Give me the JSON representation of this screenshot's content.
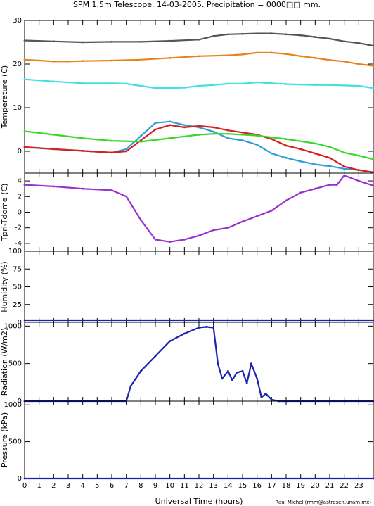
{
  "header": {
    "title": "SPM 1.5m Telescope. 14-03-2005. Precipitation = 0000□□ mm.",
    "credit": "Raul Michel (rmm@astrosen.unam.mx)"
  },
  "chart_data": [
    {
      "type": "scatter",
      "ylabel": "Temperature (C)",
      "xlabel": "",
      "xlim": [
        0,
        24
      ],
      "ylim": [
        -5,
        30
      ],
      "yticks": [
        0,
        10,
        20,
        30
      ],
      "grid": false,
      "series": [
        {
          "color": "#555555",
          "x": [
            0,
            2,
            4,
            6,
            8,
            10,
            12,
            13,
            14,
            15,
            16,
            17,
            18,
            19,
            20,
            21,
            22,
            23,
            24
          ],
          "values": [
            25.4,
            25.2,
            25.0,
            25.1,
            25.1,
            25.3,
            25.6,
            26.4,
            26.8,
            26.9,
            27.0,
            27.0,
            26.8,
            26.6,
            26.2,
            25.8,
            25.2,
            24.8,
            24.2
          ]
        },
        {
          "color": "#e8821e",
          "x": [
            0,
            1,
            2,
            3,
            4,
            6,
            8,
            10,
            12,
            14,
            15,
            16,
            17,
            18,
            19,
            20,
            21,
            22,
            23,
            24
          ],
          "values": [
            21.0,
            20.8,
            20.6,
            20.6,
            20.7,
            20.8,
            21.0,
            21.4,
            21.8,
            22.0,
            22.2,
            22.6,
            22.6,
            22.3,
            21.8,
            21.4,
            20.9,
            20.6,
            20.0,
            19.6
          ]
        },
        {
          "color": "#40e0e0",
          "x": [
            0,
            2,
            4,
            6,
            7,
            8,
            9,
            10,
            11,
            12,
            13,
            14,
            15,
            16,
            17,
            18,
            19,
            20,
            21,
            22,
            23,
            24
          ],
          "values": [
            16.5,
            16.0,
            15.6,
            15.6,
            15.5,
            15.0,
            14.5,
            14.5,
            14.6,
            15.0,
            15.2,
            15.5,
            15.5,
            15.8,
            15.6,
            15.4,
            15.3,
            15.2,
            15.2,
            15.1,
            15.0,
            14.5
          ]
        },
        {
          "color": "#2d9fd8",
          "x": [
            0,
            2,
            4,
            6,
            7,
            8,
            9,
            10,
            11,
            12,
            13,
            14,
            15,
            16,
            17,
            18,
            19,
            20,
            21,
            22,
            23,
            24
          ],
          "values": [
            0.9,
            0.5,
            0.1,
            -0.3,
            0.5,
            3.5,
            6.5,
            6.8,
            6.0,
            5.5,
            4.5,
            3.0,
            2.5,
            1.5,
            -0.5,
            -1.5,
            -2.3,
            -3.0,
            -3.4,
            -4.0,
            -4.3,
            -4.8
          ]
        },
        {
          "color": "#d42020",
          "x": [
            0,
            2,
            4,
            6,
            7,
            8,
            9,
            10,
            11,
            12,
            13,
            14,
            15,
            16,
            17,
            18,
            19,
            20,
            21,
            22,
            23,
            24
          ],
          "values": [
            1.0,
            0.5,
            0.1,
            -0.3,
            0.0,
            2.5,
            5.0,
            6.0,
            5.5,
            5.8,
            5.5,
            4.8,
            4.3,
            3.8,
            2.8,
            1.3,
            0.5,
            -0.5,
            -1.5,
            -3.5,
            -4.3,
            -4.8
          ]
        },
        {
          "color": "#38d828",
          "x": [
            0,
            2,
            4,
            6,
            8,
            10,
            12,
            13,
            14,
            16,
            18,
            20,
            21,
            22,
            23,
            24
          ],
          "values": [
            4.6,
            3.8,
            3.0,
            2.4,
            2.2,
            3.0,
            3.8,
            4.0,
            4.0,
            3.6,
            2.8,
            1.8,
            1.0,
            -0.3,
            -1.0,
            -1.8
          ]
        }
      ]
    },
    {
      "type": "scatter",
      "ylabel": "Tpri-Tdome (C)",
      "xlabel": "",
      "xlim": [
        0,
        24
      ],
      "ylim": [
        -5,
        5
      ],
      "yticks": [
        -4,
        -2,
        0,
        2,
        4
      ],
      "grid": false,
      "series": [
        {
          "color": "#9932cc",
          "x": [
            0,
            2,
            4,
            6,
            7,
            8,
            9,
            10,
            11,
            12,
            13,
            14,
            15,
            16,
            17,
            18,
            19,
            20,
            21,
            21.5,
            22,
            23,
            24
          ],
          "values": [
            3.5,
            3.3,
            3.0,
            2.8,
            2.0,
            -1.0,
            -3.5,
            -3.8,
            -3.5,
            -3.0,
            -2.3,
            -2.0,
            -1.2,
            -0.5,
            0.2,
            1.5,
            2.5,
            3.0,
            3.5,
            3.5,
            4.7,
            4.0,
            3.4
          ]
        }
      ]
    },
    {
      "type": "line",
      "ylabel": "Humidity (%)",
      "xlabel": "",
      "xlim": [
        0,
        24
      ],
      "ylim": [
        0,
        100
      ],
      "yticks": [
        0,
        25,
        50,
        75,
        100
      ],
      "grid": false,
      "series": [
        {
          "color": "#1a22b0",
          "x": [
            0,
            24
          ],
          "values": [
            3,
            3
          ]
        }
      ]
    },
    {
      "type": "scatter",
      "ylabel": "Radiation (W/m2)",
      "xlabel": "",
      "xlim": [
        0,
        24
      ],
      "ylim": [
        0,
        1050
      ],
      "yticks": [
        0,
        500,
        1000
      ],
      "grid": false,
      "series": [
        {
          "color": "#1a22b0",
          "x": [
            0,
            6,
            7,
            7.3,
            8,
            9,
            10,
            11,
            12,
            12.5,
            13,
            13.3,
            13.6,
            14,
            14.3,
            14.6,
            15,
            15.3,
            15.6,
            16,
            16.3,
            16.6,
            17,
            17.5,
            17.8,
            18,
            24
          ],
          "values": [
            0,
            0,
            0,
            200,
            400,
            600,
            800,
            900,
            980,
            990,
            980,
            500,
            300,
            400,
            280,
            380,
            400,
            240,
            500,
            300,
            50,
            100,
            20,
            0,
            0,
            0,
            0
          ]
        }
      ]
    },
    {
      "type": "line",
      "ylabel": "Pressure (kPa)",
      "xlabel": "Universal Time (hours)",
      "xlim": [
        0,
        24
      ],
      "ylim": [
        0,
        1050
      ],
      "yticks": [
        0,
        500,
        1000
      ],
      "grid": false,
      "series": [
        {
          "color": "#1a22b0",
          "x": [
            0,
            24
          ],
          "values": [
            0,
            0
          ]
        }
      ]
    }
  ],
  "xticks": [
    "0",
    "1",
    "2",
    "3",
    "4",
    "5",
    "6",
    "7",
    "8",
    "9",
    "10",
    "11",
    "12",
    "13",
    "14",
    "15",
    "16",
    "17",
    "18",
    "19",
    "20",
    "21",
    "22",
    "23"
  ]
}
